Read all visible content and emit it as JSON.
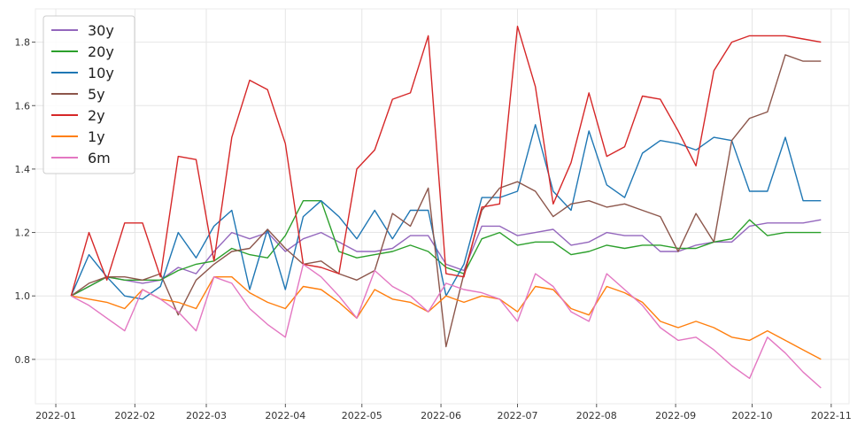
{
  "chart_data": {
    "type": "line",
    "title": "",
    "xlabel": "",
    "ylabel": "",
    "xlim": [
      "2021-12-24",
      "2022-11-08"
    ],
    "ylim": [
      0.66,
      1.905
    ],
    "grid": true,
    "legend_position": "top-left",
    "x_ticks": [
      "2022-01",
      "2022-02",
      "2022-03",
      "2022-04",
      "2022-05",
      "2022-06",
      "2022-07",
      "2022-08",
      "2022-09",
      "2022-10",
      "2022-11"
    ],
    "y_ticks": [
      "0.8",
      "1.0",
      "1.2",
      "1.4",
      "1.6",
      "1.8"
    ],
    "x": [
      "2022-01-07",
      "2022-01-14",
      "2022-01-21",
      "2022-01-28",
      "2022-02-04",
      "2022-02-11",
      "2022-02-18",
      "2022-02-25",
      "2022-03-04",
      "2022-03-11",
      "2022-03-18",
      "2022-03-25",
      "2022-04-01",
      "2022-04-08",
      "2022-04-15",
      "2022-04-22",
      "2022-04-29",
      "2022-05-06",
      "2022-05-13",
      "2022-05-20",
      "2022-05-27",
      "2022-06-03",
      "2022-06-10",
      "2022-06-17",
      "2022-06-24",
      "2022-07-01",
      "2022-07-08",
      "2022-07-15",
      "2022-07-22",
      "2022-07-29",
      "2022-08-05",
      "2022-08-12",
      "2022-08-19",
      "2022-08-26",
      "2022-09-02",
      "2022-09-09",
      "2022-09-16",
      "2022-09-23",
      "2022-09-30",
      "2022-10-07",
      "2022-10-14",
      "2022-10-21",
      "2022-10-28"
    ],
    "series": [
      {
        "name": "30y",
        "color": "#9467bd",
        "values": [
          1.0,
          1.03,
          1.06,
          1.05,
          1.04,
          1.05,
          1.09,
          1.07,
          1.14,
          1.2,
          1.18,
          1.2,
          1.14,
          1.18,
          1.2,
          1.17,
          1.14,
          1.14,
          1.15,
          1.19,
          1.19,
          1.1,
          1.08,
          1.22,
          1.22,
          1.19,
          1.2,
          1.21,
          1.16,
          1.17,
          1.2,
          1.19,
          1.19,
          1.14,
          1.14,
          1.16,
          1.17,
          1.17,
          1.22,
          1.23,
          1.23,
          1.23,
          1.24
        ]
      },
      {
        "name": "20y",
        "color": "#2ca02c",
        "values": [
          1.0,
          1.03,
          1.06,
          1.05,
          1.05,
          1.05,
          1.08,
          1.1,
          1.11,
          1.15,
          1.13,
          1.12,
          1.19,
          1.3,
          1.3,
          1.14,
          1.12,
          1.13,
          1.14,
          1.16,
          1.14,
          1.09,
          1.07,
          1.18,
          1.2,
          1.16,
          1.17,
          1.17,
          1.13,
          1.14,
          1.16,
          1.15,
          1.16,
          1.16,
          1.15,
          1.15,
          1.17,
          1.18,
          1.24,
          1.19,
          1.2,
          1.2,
          1.2
        ]
      },
      {
        "name": "10y",
        "color": "#1f77b4",
        "values": [
          1.0,
          1.13,
          1.06,
          1.0,
          0.99,
          1.03,
          1.2,
          1.12,
          1.22,
          1.27,
          1.02,
          1.21,
          1.02,
          1.25,
          1.3,
          1.25,
          1.18,
          1.27,
          1.18,
          1.27,
          1.27,
          1.0,
          1.1,
          1.31,
          1.31,
          1.33,
          1.54,
          1.33,
          1.27,
          1.52,
          1.35,
          1.31,
          1.45,
          1.49,
          1.48,
          1.46,
          1.5,
          1.49,
          1.33,
          1.33,
          1.5,
          1.3,
          1.3
        ]
      },
      {
        "name": "5y",
        "color": "#8c564b",
        "values": [
          1.0,
          1.04,
          1.06,
          1.06,
          1.05,
          1.07,
          0.94,
          1.05,
          1.1,
          1.14,
          1.15,
          1.21,
          1.15,
          1.1,
          1.11,
          1.07,
          1.05,
          1.08,
          1.26,
          1.22,
          1.34,
          0.84,
          1.07,
          1.27,
          1.34,
          1.36,
          1.33,
          1.25,
          1.29,
          1.3,
          1.28,
          1.29,
          1.27,
          1.25,
          1.14,
          1.26,
          1.17,
          1.49,
          1.56,
          1.58,
          1.76,
          1.74,
          1.74
        ]
      },
      {
        "name": "2y",
        "color": "#d62728",
        "values": [
          1.0,
          1.2,
          1.05,
          1.23,
          1.23,
          1.06,
          1.44,
          1.43,
          1.11,
          1.5,
          1.68,
          1.65,
          1.48,
          1.1,
          1.09,
          1.07,
          1.4,
          1.46,
          1.62,
          1.64,
          1.82,
          1.07,
          1.06,
          1.28,
          1.29,
          1.85,
          1.66,
          1.29,
          1.42,
          1.64,
          1.44,
          1.47,
          1.63,
          1.62,
          1.52,
          1.41,
          1.71,
          1.8,
          1.82,
          1.82,
          1.82,
          1.81,
          1.8
        ]
      },
      {
        "name": "1y",
        "color": "#ff7f0e",
        "values": [
          1.0,
          0.99,
          0.98,
          0.96,
          1.02,
          0.99,
          0.98,
          0.96,
          1.06,
          1.06,
          1.01,
          0.98,
          0.96,
          1.03,
          1.02,
          0.98,
          0.93,
          1.02,
          0.99,
          0.98,
          0.95,
          1.0,
          0.98,
          1.0,
          0.99,
          0.95,
          1.03,
          1.02,
          0.96,
          0.94,
          1.03,
          1.01,
          0.98,
          0.92,
          0.9,
          0.92,
          0.9,
          0.87,
          0.86,
          0.89,
          0.86,
          0.83,
          0.8
        ]
      },
      {
        "name": "6m",
        "color": "#e377c2",
        "values": [
          1.0,
          0.97,
          0.93,
          0.89,
          1.02,
          0.99,
          0.95,
          0.89,
          1.06,
          1.04,
          0.96,
          0.91,
          0.87,
          1.1,
          1.06,
          1.0,
          0.93,
          1.08,
          1.03,
          1.0,
          0.95,
          1.04,
          1.02,
          1.01,
          0.99,
          0.92,
          1.07,
          1.03,
          0.95,
          0.92,
          1.07,
          1.02,
          0.97,
          0.9,
          0.86,
          0.87,
          0.83,
          0.78,
          0.74,
          0.87,
          0.82,
          0.76,
          0.71
        ]
      }
    ]
  }
}
